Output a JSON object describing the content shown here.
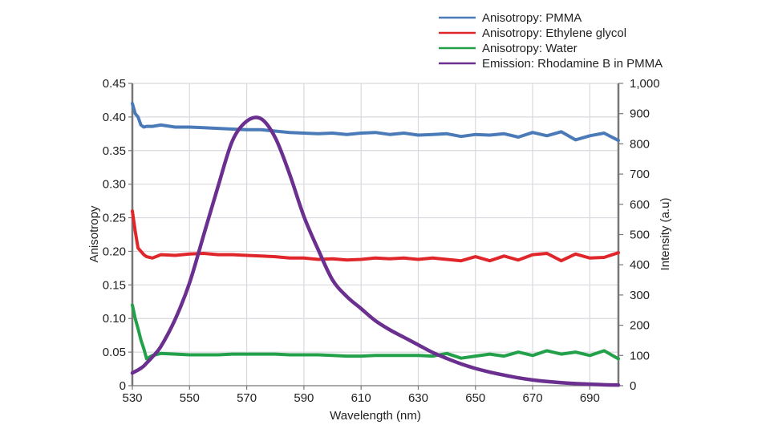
{
  "chart_data": {
    "type": "line",
    "title": "",
    "xlabel": "Wavelength (nm)",
    "ylabel": "Anisotropy",
    "y2label": "Intensity (a.u)",
    "xlim": [
      530,
      700
    ],
    "ylim": [
      0,
      0.45
    ],
    "y2lim": [
      0,
      1000
    ],
    "grid": true,
    "legend_position": "top-right",
    "x_ticks": [
      530,
      550,
      570,
      590,
      610,
      630,
      650,
      670,
      690
    ],
    "x_tick_labels": [
      "530",
      "550",
      "570",
      "590",
      "610",
      "630",
      "650",
      "670",
      "690"
    ],
    "y_ticks": [
      0,
      0.05,
      0.1,
      0.15,
      0.2,
      0.25,
      0.3,
      0.35,
      0.4,
      0.45
    ],
    "y_tick_labels": [
      "0",
      "0.05",
      "0.10",
      "0.15",
      "0.20",
      "0.25",
      "0.30",
      "0.35",
      "0.40",
      "0.45"
    ],
    "y2_ticks": [
      0,
      100,
      200,
      300,
      400,
      500,
      600,
      700,
      800,
      900,
      1000
    ],
    "y2_tick_labels": [
      "0",
      "100",
      "200",
      "300",
      "400",
      "500",
      "600",
      "700",
      "800",
      "900",
      "1,000"
    ],
    "x": [
      530,
      531,
      532,
      533,
      534,
      535,
      537,
      540,
      545,
      550,
      555,
      560,
      565,
      570,
      575,
      580,
      585,
      590,
      595,
      600,
      605,
      610,
      615,
      620,
      625,
      630,
      635,
      640,
      645,
      650,
      655,
      660,
      665,
      670,
      675,
      680,
      685,
      690,
      695,
      700
    ],
    "series": [
      {
        "name": "Anisotropy: PMMA",
        "axis": "left",
        "color": "#4a7ab8",
        "values": [
          0.42,
          0.405,
          0.4,
          0.388,
          0.385,
          0.386,
          0.386,
          0.388,
          0.385,
          0.385,
          0.384,
          0.383,
          0.382,
          0.381,
          0.381,
          0.379,
          0.377,
          0.376,
          0.375,
          0.376,
          0.374,
          0.376,
          0.377,
          0.374,
          0.376,
          0.373,
          0.374,
          0.375,
          0.371,
          0.374,
          0.373,
          0.375,
          0.37,
          0.377,
          0.372,
          0.378,
          0.366,
          0.372,
          0.376,
          0.365
        ]
      },
      {
        "name": "Anisotropy: Ethylene glycol",
        "axis": "left",
        "color": "#e0262b",
        "values": [
          0.26,
          0.23,
          0.205,
          0.2,
          0.195,
          0.192,
          0.19,
          0.195,
          0.194,
          0.196,
          0.197,
          0.195,
          0.195,
          0.194,
          0.193,
          0.192,
          0.19,
          0.19,
          0.188,
          0.189,
          0.187,
          0.188,
          0.19,
          0.189,
          0.19,
          0.188,
          0.19,
          0.188,
          0.186,
          0.192,
          0.186,
          0.193,
          0.187,
          0.195,
          0.197,
          0.186,
          0.196,
          0.19,
          0.191,
          0.198
        ]
      },
      {
        "name": "Anisotropy: Water",
        "axis": "left",
        "color": "#23a04a",
        "values": [
          0.12,
          0.1,
          0.085,
          0.068,
          0.055,
          0.04,
          0.045,
          0.048,
          0.047,
          0.046,
          0.046,
          0.046,
          0.047,
          0.047,
          0.047,
          0.047,
          0.046,
          0.046,
          0.046,
          0.045,
          0.044,
          0.044,
          0.045,
          0.045,
          0.045,
          0.045,
          0.044,
          0.048,
          0.041,
          0.044,
          0.047,
          0.044,
          0.05,
          0.045,
          0.052,
          0.047,
          0.05,
          0.045,
          0.052,
          0.04
        ]
      },
      {
        "name": "Emission: Rhodamine B in PMMA",
        "axis": "right",
        "color": "#6a2f8f",
        "values": [
          42,
          47,
          52,
          58,
          65,
          75,
          95,
          130,
          220,
          340,
          500,
          660,
          810,
          875,
          883,
          820,
          700,
          560,
          450,
          350,
          295,
          255,
          215,
          185,
          160,
          135,
          110,
          90,
          72,
          57,
          45,
          35,
          26,
          19,
          14,
          10,
          7,
          5,
          3,
          2
        ]
      }
    ]
  }
}
